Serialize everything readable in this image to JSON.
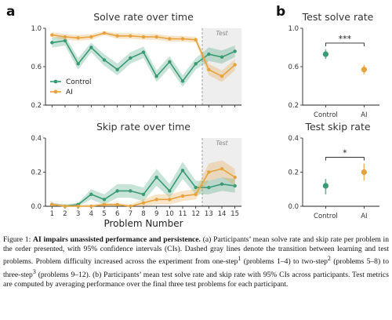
{
  "panel_a_label": "a",
  "panel_b_label": "b",
  "colors": {
    "control": "#3a9a74",
    "ai": "#e6a23c",
    "test_region": "#eeeeee",
    "divider": "#999999"
  },
  "chart_data": [
    {
      "id": "solve",
      "type": "line",
      "title": "Solve rate over time",
      "xlabel": "Problem Number",
      "ylabel": "",
      "x": [
        1,
        2,
        3,
        4,
        5,
        6,
        7,
        8,
        9,
        10,
        11,
        12,
        13,
        14,
        15
      ],
      "ylim": [
        0.2,
        1.0
      ],
      "yticks": [
        "0.2",
        "0.6",
        "1.0"
      ],
      "ytick_values": [
        0.2,
        0.6,
        1.0
      ],
      "test_start": 12.5,
      "test_label": "Test",
      "legend": {
        "position": "lower-left",
        "entries": [
          "Control",
          "AI"
        ]
      },
      "series": [
        {
          "name": "Control",
          "key": "control",
          "values": [
            0.85,
            0.87,
            0.63,
            0.8,
            0.67,
            0.57,
            0.69,
            0.75,
            0.5,
            0.65,
            0.45,
            0.63,
            0.73,
            0.7,
            0.76
          ],
          "lower": [
            0.8,
            0.82,
            0.57,
            0.75,
            0.61,
            0.51,
            0.63,
            0.69,
            0.44,
            0.59,
            0.39,
            0.57,
            0.66,
            0.63,
            0.7
          ],
          "upper": [
            0.9,
            0.92,
            0.69,
            0.85,
            0.73,
            0.63,
            0.75,
            0.81,
            0.56,
            0.71,
            0.51,
            0.69,
            0.8,
            0.77,
            0.82
          ]
        },
        {
          "name": "AI",
          "key": "ai",
          "values": [
            0.93,
            0.91,
            0.9,
            0.91,
            0.95,
            0.92,
            0.92,
            0.91,
            0.91,
            0.89,
            0.89,
            0.88,
            0.57,
            0.5,
            0.62
          ],
          "lower": [
            0.9,
            0.88,
            0.87,
            0.88,
            0.93,
            0.89,
            0.89,
            0.88,
            0.88,
            0.86,
            0.86,
            0.85,
            0.51,
            0.44,
            0.56
          ],
          "upper": [
            0.96,
            0.94,
            0.93,
            0.94,
            0.97,
            0.95,
            0.95,
            0.94,
            0.94,
            0.92,
            0.92,
            0.91,
            0.63,
            0.56,
            0.68
          ]
        }
      ]
    },
    {
      "id": "skip",
      "type": "line",
      "title": "Skip rate over time",
      "xlabel": "Problem Number",
      "ylabel": "",
      "x": [
        1,
        2,
        3,
        4,
        5,
        6,
        7,
        8,
        9,
        10,
        11,
        12,
        13,
        14,
        15
      ],
      "xticks": [
        "1",
        "2",
        "3",
        "4",
        "5",
        "6",
        "7",
        "8",
        "9",
        "10",
        "11",
        "12",
        "13",
        "14",
        "15"
      ],
      "ylim": [
        0.0,
        0.4
      ],
      "yticks": [
        "0.0",
        "0.2",
        "0.4"
      ],
      "ytick_values": [
        0.0,
        0.2,
        0.4
      ],
      "test_start": 12.5,
      "test_label": "Test",
      "series": [
        {
          "name": "Control",
          "key": "control",
          "values": [
            0.01,
            0.0,
            0.01,
            0.07,
            0.04,
            0.09,
            0.09,
            0.07,
            0.17,
            0.09,
            0.21,
            0.11,
            0.11,
            0.13,
            0.12
          ],
          "lower": [
            0.0,
            0.0,
            0.0,
            0.04,
            0.01,
            0.05,
            0.05,
            0.03,
            0.12,
            0.05,
            0.16,
            0.07,
            0.07,
            0.09,
            0.08
          ],
          "upper": [
            0.02,
            0.01,
            0.02,
            0.1,
            0.07,
            0.13,
            0.13,
            0.11,
            0.22,
            0.13,
            0.26,
            0.15,
            0.15,
            0.17,
            0.16
          ]
        },
        {
          "name": "AI",
          "key": "ai",
          "values": [
            0.01,
            0.0,
            0.0,
            0.0,
            0.01,
            0.01,
            0.0,
            0.02,
            0.04,
            0.04,
            0.06,
            0.07,
            0.2,
            0.22,
            0.17
          ],
          "lower": [
            0.0,
            0.0,
            0.0,
            0.0,
            0.0,
            0.0,
            0.0,
            0.0,
            0.01,
            0.01,
            0.03,
            0.04,
            0.15,
            0.17,
            0.12
          ],
          "upper": [
            0.02,
            0.01,
            0.01,
            0.01,
            0.02,
            0.02,
            0.01,
            0.04,
            0.07,
            0.07,
            0.09,
            0.1,
            0.25,
            0.27,
            0.22
          ]
        }
      ]
    },
    {
      "id": "test_solve",
      "type": "scatter",
      "title": "Test solve rate",
      "categories": [
        "Control",
        "AI"
      ],
      "ylim": [
        0.2,
        1.0
      ],
      "yticks": [
        "0.2",
        "0.6",
        "1.0"
      ],
      "ytick_values": [
        0.2,
        0.6,
        1.0
      ],
      "values": [
        0.73,
        0.57
      ],
      "lower": [
        0.68,
        0.52
      ],
      "upper": [
        0.78,
        0.62
      ],
      "significance": "***"
    },
    {
      "id": "test_skip",
      "type": "scatter",
      "title": "Test skip rate",
      "categories": [
        "Control",
        "AI"
      ],
      "ylim": [
        0.0,
        0.4
      ],
      "yticks": [
        "0.0",
        "0.2",
        "0.4"
      ],
      "ytick_values": [
        0.0,
        0.2,
        0.4
      ],
      "values": [
        0.12,
        0.2
      ],
      "lower": [
        0.07,
        0.15
      ],
      "upper": [
        0.16,
        0.25
      ],
      "significance": "*"
    }
  ],
  "caption": {
    "prefix": "Figure 1: ",
    "bold": "AI impairs unassisted performance and persistence.",
    "t1": " (a) Participants’ mean solve rate and skip rate per problem in the order presented, with 95% confidence intervals (CIs). Dashed gray lines denote the transition between learning and test problems. Problem difficulty increased across the experiment from one-step",
    "s1": "1",
    "t2": " (problems 1–4) to two-step",
    "s2": "2",
    "t3": " (problems 5–8) to three-step",
    "s3": "3",
    "t4": " (problems 9–12). (b) Participants’ mean test solve rate and skip rate with 95% CIs across participants. Test metrics are computed by averaging performance over the final three test problems for each participant."
  }
}
